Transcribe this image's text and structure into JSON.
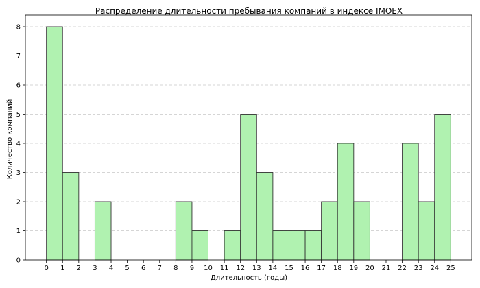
{
  "chart_data": {
    "type": "bar",
    "title": "Распределение длительности пребывания компаний в индексе IMOEX",
    "xlabel": "Длительность (годы)",
    "ylabel": "Количество компаний",
    "bin_edges": [
      0,
      1,
      2,
      3,
      4,
      5,
      6,
      7,
      8,
      9,
      10,
      11,
      12,
      13,
      14,
      15,
      16,
      17,
      18,
      19,
      20,
      21,
      22,
      23,
      24,
      25
    ],
    "values": [
      8,
      3,
      0,
      2,
      0,
      0,
      0,
      0,
      2,
      1,
      0,
      1,
      5,
      3,
      1,
      1,
      1,
      2,
      4,
      2,
      0,
      0,
      4,
      2,
      5
    ],
    "xlim": [
      -1.3,
      26.3
    ],
    "ylim": [
      0,
      8.4
    ],
    "yticks": [
      0,
      1,
      2,
      3,
      4,
      5,
      6,
      7,
      8
    ],
    "grid": "y-dashed",
    "colors": {
      "bar_fill": "#b0f2b0",
      "bar_edge": "#333333",
      "grid": "#c8c8c8"
    }
  }
}
